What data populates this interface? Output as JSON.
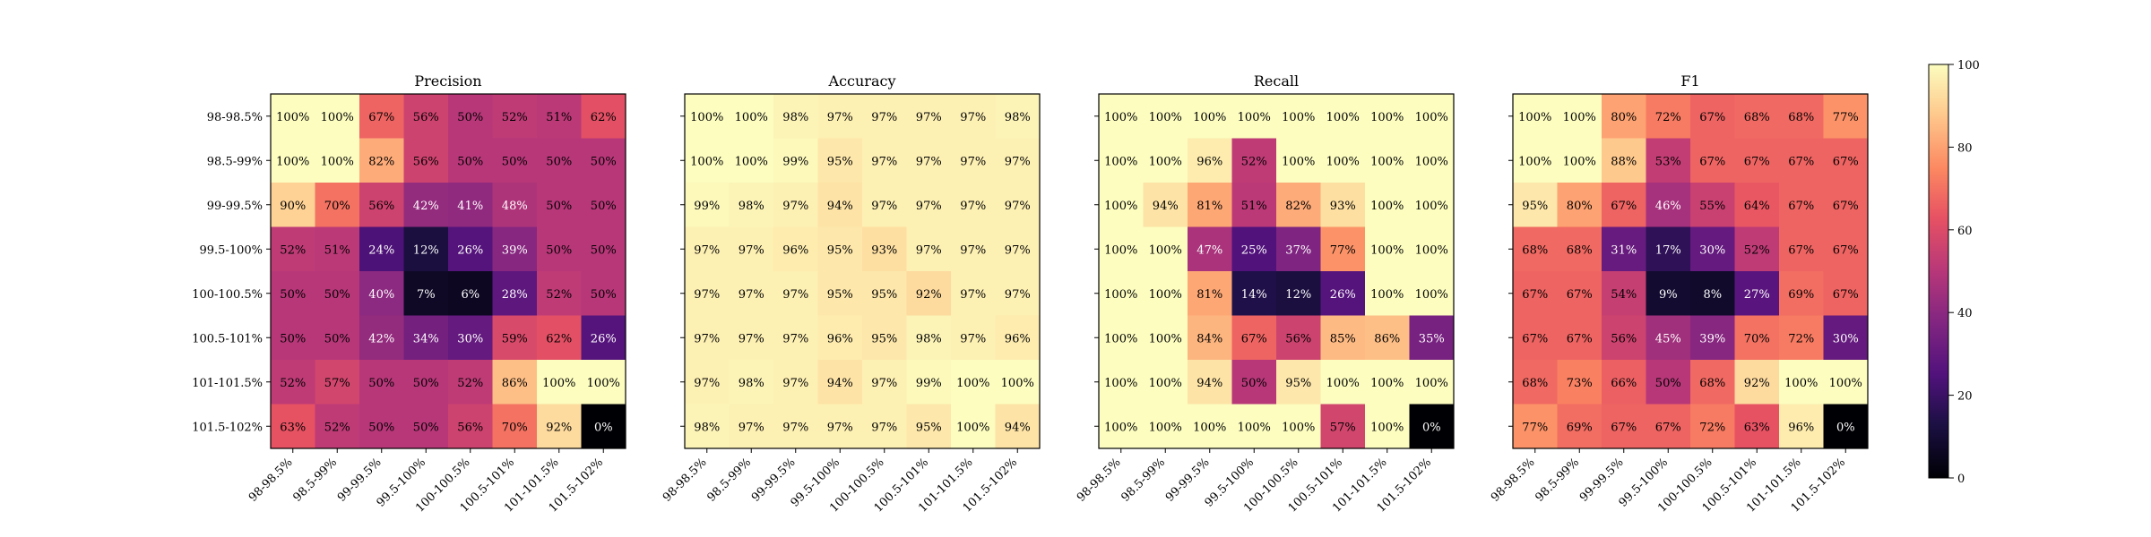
{
  "figure": {
    "colorbar_ticks": [
      0,
      20,
      40,
      60,
      80,
      100
    ],
    "colormap": "magma"
  },
  "chart_data": [
    {
      "type": "heatmap",
      "title": "Precision",
      "rows": [
        "98-98.5%",
        "98.5-99%",
        "99-99.5%",
        "99.5-100%",
        "100-100.5%",
        "100.5-101%",
        "101-101.5%",
        "101.5-102%"
      ],
      "cols": [
        "98-98.5%",
        "98.5-99%",
        "99-99.5%",
        "99.5-100%",
        "100-100.5%",
        "100.5-101%",
        "101-101.5%",
        "101.5-102%"
      ],
      "values": [
        [
          100,
          100,
          67,
          56,
          50,
          52,
          51,
          62
        ],
        [
          100,
          100,
          82,
          56,
          50,
          50,
          50,
          50
        ],
        [
          90,
          70,
          56,
          42,
          41,
          48,
          50,
          50
        ],
        [
          52,
          51,
          24,
          12,
          26,
          39,
          50,
          50
        ],
        [
          50,
          50,
          40,
          7,
          6,
          28,
          52,
          50
        ],
        [
          50,
          50,
          42,
          34,
          30,
          59,
          62,
          26
        ],
        [
          52,
          57,
          50,
          50,
          52,
          86,
          100,
          100
        ],
        [
          63,
          52,
          50,
          50,
          56,
          70,
          92,
          0
        ]
      ],
      "vmin": 0,
      "vmax": 100
    },
    {
      "type": "heatmap",
      "title": "Accuracy",
      "rows": [
        "98-98.5%",
        "98.5-99%",
        "99-99.5%",
        "99.5-100%",
        "100-100.5%",
        "100.5-101%",
        "101-101.5%",
        "101.5-102%"
      ],
      "cols": [
        "98-98.5%",
        "98.5-99%",
        "99-99.5%",
        "99.5-100%",
        "100-100.5%",
        "100.5-101%",
        "101-101.5%",
        "101.5-102%"
      ],
      "values": [
        [
          100,
          100,
          98,
          97,
          97,
          97,
          97,
          98
        ],
        [
          100,
          100,
          99,
          95,
          97,
          97,
          97,
          97
        ],
        [
          99,
          98,
          97,
          94,
          97,
          97,
          97,
          97
        ],
        [
          97,
          97,
          96,
          95,
          93,
          97,
          97,
          97
        ],
        [
          97,
          97,
          97,
          95,
          95,
          92,
          97,
          97
        ],
        [
          97,
          97,
          97,
          96,
          95,
          98,
          97,
          96
        ],
        [
          97,
          98,
          97,
          94,
          97,
          99,
          100,
          100
        ],
        [
          98,
          97,
          97,
          97,
          97,
          95,
          100,
          94
        ]
      ],
      "vmin": 0,
      "vmax": 100
    },
    {
      "type": "heatmap",
      "title": "Recall",
      "rows": [
        "98-98.5%",
        "98.5-99%",
        "99-99.5%",
        "99.5-100%",
        "100-100.5%",
        "100.5-101%",
        "101-101.5%",
        "101.5-102%"
      ],
      "cols": [
        "98-98.5%",
        "98.5-99%",
        "99-99.5%",
        "99.5-100%",
        "100-100.5%",
        "100.5-101%",
        "101-101.5%",
        "101.5-102%"
      ],
      "values": [
        [
          100,
          100,
          100,
          100,
          100,
          100,
          100,
          100
        ],
        [
          100,
          100,
          96,
          52,
          100,
          100,
          100,
          100
        ],
        [
          100,
          94,
          81,
          51,
          82,
          93,
          100,
          100
        ],
        [
          100,
          100,
          47,
          25,
          37,
          77,
          100,
          100
        ],
        [
          100,
          100,
          81,
          14,
          12,
          26,
          100,
          100
        ],
        [
          100,
          100,
          84,
          67,
          56,
          85,
          86,
          35
        ],
        [
          100,
          100,
          94,
          50,
          95,
          100,
          100,
          100
        ],
        [
          100,
          100,
          100,
          100,
          100,
          57,
          100,
          0
        ]
      ],
      "vmin": 0,
      "vmax": 100
    },
    {
      "type": "heatmap",
      "title": "F1",
      "rows": [
        "98-98.5%",
        "98.5-99%",
        "99-99.5%",
        "99.5-100%",
        "100-100.5%",
        "100.5-101%",
        "101-101.5%",
        "101.5-102%"
      ],
      "cols": [
        "98-98.5%",
        "98.5-99%",
        "99-99.5%",
        "99.5-100%",
        "100-100.5%",
        "100.5-101%",
        "101-101.5%",
        "101.5-102%"
      ],
      "values": [
        [
          100,
          100,
          80,
          72,
          67,
          68,
          68,
          77
        ],
        [
          100,
          100,
          88,
          53,
          67,
          67,
          67,
          67
        ],
        [
          95,
          80,
          67,
          46,
          55,
          64,
          67,
          67
        ],
        [
          68,
          68,
          31,
          17,
          30,
          52,
          67,
          67
        ],
        [
          67,
          67,
          54,
          9,
          8,
          27,
          69,
          67
        ],
        [
          67,
          67,
          56,
          45,
          39,
          70,
          72,
          30
        ],
        [
          68,
          73,
          66,
          50,
          68,
          92,
          100,
          100
        ],
        [
          77,
          69,
          67,
          67,
          72,
          63,
          96,
          0
        ]
      ],
      "vmin": 0,
      "vmax": 100
    }
  ]
}
